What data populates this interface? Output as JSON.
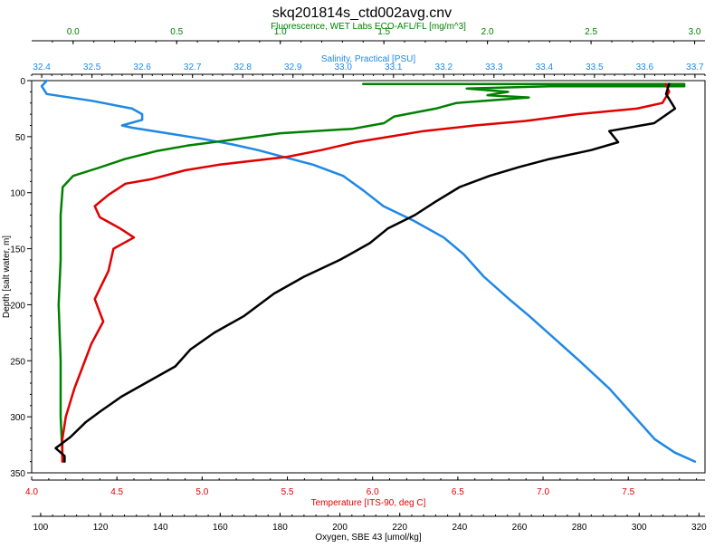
{
  "chart_data": {
    "type": "line",
    "title": "skq201814s_ctd002avg.cnv",
    "ylabel": "Depth [salt water, m]",
    "ylim": [
      0,
      350
    ],
    "y_ticks": [
      "0",
      "50",
      "100",
      "150",
      "200",
      "250",
      "300",
      "350"
    ],
    "grid": false,
    "legend": "none",
    "axes": {
      "fluorescence": {
        "label": "Fluorescence, WET Labs ECO-AFL/FL [mg/m^3]",
        "color": "#008000",
        "range": [
          -0.2,
          3.05
        ],
        "ticks": [
          0.0,
          0.5,
          1.0,
          1.5,
          2.0,
          2.5,
          3.0
        ],
        "tick_labels": [
          "0.0",
          "0.5",
          "1.0",
          "1.5",
          "2.0",
          "2.5",
          "3.0"
        ]
      },
      "salinity": {
        "label": "Salinity, Practical [PSU]",
        "color": "#1E88E5",
        "range": [
          32.38,
          33.72
        ],
        "ticks": [
          32.4,
          32.5,
          32.6,
          32.7,
          32.8,
          32.9,
          33.0,
          33.1,
          33.2,
          33.3,
          33.4,
          33.5,
          33.6,
          33.7
        ],
        "tick_labels": [
          "32.4",
          "32.5",
          "32.6",
          "32.7",
          "32.8",
          "32.9",
          "33.0",
          "33.1",
          "33.2",
          "33.3",
          "33.4",
          "33.5",
          "33.6",
          "33.7"
        ]
      },
      "temperature": {
        "label": "Temperature [ITS-90, deg C]",
        "color": "#E00000",
        "range": [
          4.0,
          7.95
        ],
        "ticks": [
          4.0,
          4.5,
          5.0,
          5.5,
          6.0,
          6.5,
          7.0,
          7.5
        ],
        "tick_labels": [
          "4.0",
          "4.5",
          "5.0",
          "5.5",
          "6.0",
          "6.5",
          "7.0",
          "7.5"
        ]
      },
      "oxygen": {
        "label": "Oxygen, SBE 43 [umol/kg]",
        "color": "#000000",
        "range": [
          97,
          322
        ],
        "ticks": [
          100,
          120,
          140,
          160,
          180,
          200,
          220,
          240,
          260,
          280,
          300,
          320
        ],
        "tick_labels": [
          "100",
          "120",
          "140",
          "160",
          "180",
          "200",
          "220",
          "240",
          "260",
          "280",
          "300",
          "320"
        ]
      }
    },
    "series": [
      {
        "axis": "salinity",
        "color": "#1E88E5",
        "points": [
          [
            32.41,
            0
          ],
          [
            32.4,
            5
          ],
          [
            32.41,
            12
          ],
          [
            32.5,
            18
          ],
          [
            32.58,
            25
          ],
          [
            32.6,
            30
          ],
          [
            32.6,
            35
          ],
          [
            32.56,
            40
          ],
          [
            32.58,
            42
          ],
          [
            32.65,
            47
          ],
          [
            32.72,
            52
          ],
          [
            32.78,
            57
          ],
          [
            32.83,
            62
          ],
          [
            32.88,
            68
          ],
          [
            32.94,
            75
          ],
          [
            33.0,
            85
          ],
          [
            33.04,
            98
          ],
          [
            33.08,
            112
          ],
          [
            33.14,
            125
          ],
          [
            33.2,
            140
          ],
          [
            33.24,
            155
          ],
          [
            33.28,
            175
          ],
          [
            33.33,
            195
          ],
          [
            33.37,
            210
          ],
          [
            33.42,
            230
          ],
          [
            33.47,
            250
          ],
          [
            33.53,
            275
          ],
          [
            33.56,
            290
          ],
          [
            33.59,
            305
          ],
          [
            33.62,
            320
          ],
          [
            33.66,
            332
          ],
          [
            33.7,
            340
          ]
        ]
      },
      {
        "axis": "fluorescence",
        "color": "#008000",
        "points": [
          [
            1.4,
            3
          ],
          [
            2.95,
            3
          ],
          [
            2.95,
            5
          ],
          [
            2.3,
            5
          ],
          [
            1.9,
            7
          ],
          [
            2.1,
            10
          ],
          [
            2.0,
            13
          ],
          [
            2.2,
            15
          ],
          [
            1.85,
            20
          ],
          [
            1.75,
            25
          ],
          [
            1.55,
            32
          ],
          [
            1.5,
            38
          ],
          [
            1.35,
            43
          ],
          [
            1.0,
            47
          ],
          [
            0.8,
            52
          ],
          [
            0.55,
            58
          ],
          [
            0.4,
            63
          ],
          [
            0.25,
            70
          ],
          [
            0.12,
            78
          ],
          [
            0.0,
            85
          ],
          [
            -0.05,
            95
          ],
          [
            -0.06,
            120
          ],
          [
            -0.06,
            160
          ],
          [
            -0.07,
            200
          ],
          [
            -0.06,
            250
          ],
          [
            -0.06,
            300
          ],
          [
            -0.05,
            340
          ]
        ]
      },
      {
        "axis": "temperature",
        "color": "#E00000",
        "points": [
          [
            7.72,
            3
          ],
          [
            7.74,
            10
          ],
          [
            7.7,
            20
          ],
          [
            7.55,
            25
          ],
          [
            7.2,
            30
          ],
          [
            6.9,
            36
          ],
          [
            6.6,
            40
          ],
          [
            6.3,
            45
          ],
          [
            6.1,
            50
          ],
          [
            5.9,
            55
          ],
          [
            5.7,
            62
          ],
          [
            5.5,
            68
          ],
          [
            5.1,
            75
          ],
          [
            4.9,
            80
          ],
          [
            4.7,
            88
          ],
          [
            4.55,
            92
          ],
          [
            4.45,
            102
          ],
          [
            4.37,
            112
          ],
          [
            4.4,
            122
          ],
          [
            4.52,
            132
          ],
          [
            4.6,
            140
          ],
          [
            4.48,
            150
          ],
          [
            4.45,
            170
          ],
          [
            4.37,
            195
          ],
          [
            4.42,
            215
          ],
          [
            4.35,
            235
          ],
          [
            4.3,
            255
          ],
          [
            4.25,
            275
          ],
          [
            4.2,
            300
          ],
          [
            4.18,
            320
          ],
          [
            4.18,
            340
          ]
        ]
      },
      {
        "axis": "oxygen",
        "color": "#000000",
        "points": [
          [
            310,
            3
          ],
          [
            309,
            12
          ],
          [
            312,
            25
          ],
          [
            305,
            38
          ],
          [
            290,
            45
          ],
          [
            293,
            55
          ],
          [
            284,
            62
          ],
          [
            270,
            70
          ],
          [
            260,
            77
          ],
          [
            250,
            85
          ],
          [
            240,
            95
          ],
          [
            232,
            108
          ],
          [
            225,
            120
          ],
          [
            216,
            132
          ],
          [
            210,
            145
          ],
          [
            200,
            160
          ],
          [
            188,
            175
          ],
          [
            178,
            190
          ],
          [
            168,
            210
          ],
          [
            158,
            225
          ],
          [
            150,
            240
          ],
          [
            145,
            255
          ],
          [
            135,
            270
          ],
          [
            127,
            282
          ],
          [
            120,
            295
          ],
          [
            115,
            305
          ],
          [
            110,
            318
          ],
          [
            105,
            328
          ],
          [
            108,
            335
          ],
          [
            108,
            340
          ]
        ]
      }
    ]
  }
}
